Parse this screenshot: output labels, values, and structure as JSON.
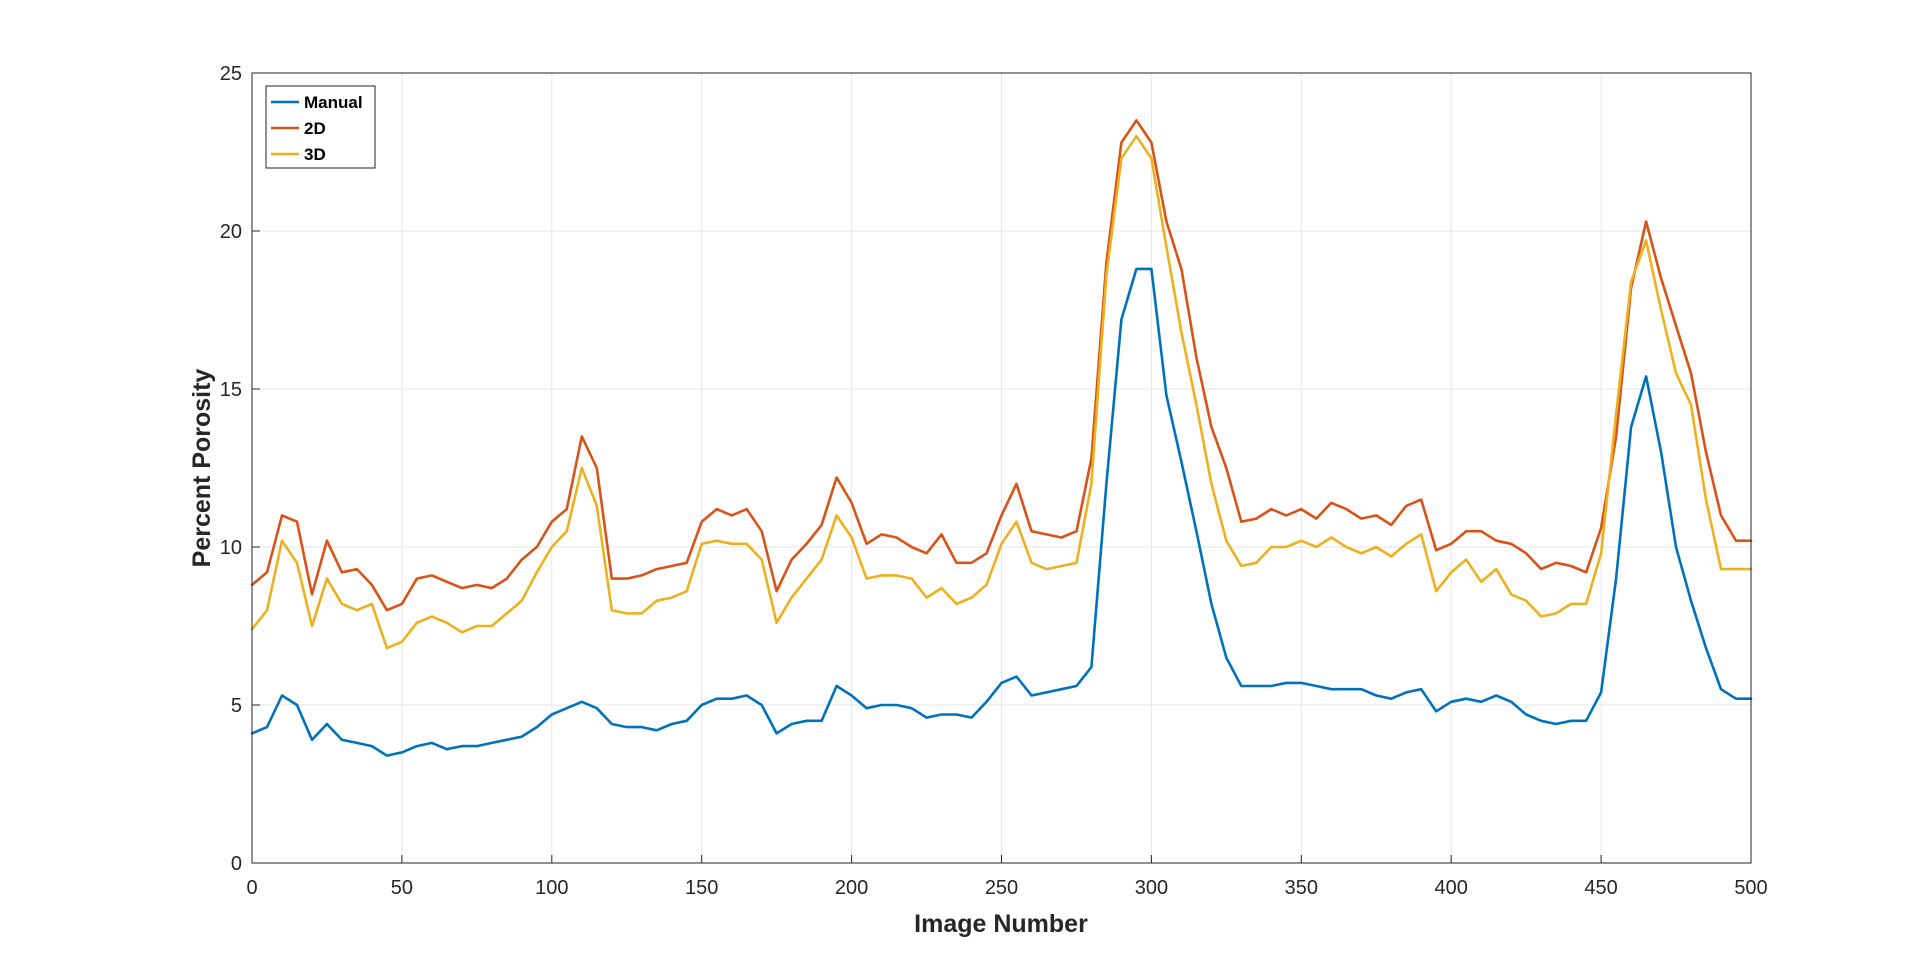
{
  "chart_data": {
    "type": "line",
    "title": "",
    "xlabel": "Image Number",
    "ylabel": "Percent Porosity",
    "xlim": [
      0,
      500
    ],
    "ylim": [
      0,
      25
    ],
    "xticks": [
      0,
      50,
      100,
      150,
      200,
      250,
      300,
      350,
      400,
      450,
      500
    ],
    "yticks": [
      0,
      5,
      10,
      15,
      20,
      25
    ],
    "grid": true,
    "legend_position": "top-left",
    "x": [
      0,
      5,
      10,
      15,
      20,
      25,
      30,
      35,
      40,
      45,
      50,
      55,
      60,
      65,
      70,
      75,
      80,
      85,
      90,
      95,
      100,
      105,
      110,
      115,
      120,
      125,
      130,
      135,
      140,
      145,
      150,
      155,
      160,
      165,
      170,
      175,
      180,
      185,
      190,
      195,
      200,
      205,
      210,
      215,
      220,
      225,
      230,
      235,
      240,
      245,
      250,
      255,
      260,
      265,
      270,
      275,
      280,
      285,
      290,
      295,
      300,
      305,
      310,
      315,
      320,
      325,
      330,
      335,
      340,
      345,
      350,
      355,
      360,
      365,
      370,
      375,
      380,
      385,
      390,
      395,
      400,
      405,
      410,
      415,
      420,
      425,
      430,
      435,
      440,
      445,
      450,
      455,
      460,
      465,
      470,
      475,
      480,
      485,
      490,
      495,
      500
    ],
    "series": [
      {
        "name": "Manual",
        "color": "#0072BD",
        "values": [
          4.1,
          4.3,
          5.3,
          5.0,
          3.9,
          4.4,
          3.9,
          3.8,
          3.7,
          3.4,
          3.5,
          3.7,
          3.8,
          3.6,
          3.7,
          3.7,
          3.8,
          3.9,
          4.0,
          4.3,
          4.7,
          4.9,
          5.1,
          4.9,
          4.4,
          4.3,
          4.3,
          4.2,
          4.4,
          4.5,
          5.0,
          5.2,
          5.2,
          5.3,
          5.0,
          4.1,
          4.4,
          4.5,
          4.5,
          5.6,
          5.3,
          4.9,
          5.0,
          5.0,
          4.9,
          4.6,
          4.7,
          4.7,
          4.6,
          5.1,
          5.7,
          5.9,
          5.3,
          5.4,
          5.5,
          5.6,
          6.2,
          12.0,
          17.2,
          18.8,
          18.8,
          14.8,
          12.7,
          10.5,
          8.2,
          6.5,
          5.6,
          5.6,
          5.6,
          5.7,
          5.7,
          5.6,
          5.5,
          5.5,
          5.5,
          5.3,
          5.2,
          5.4,
          5.5,
          4.8,
          5.1,
          5.2,
          5.1,
          5.3,
          5.1,
          4.7,
          4.5,
          4.4,
          4.5,
          4.5,
          5.4,
          9.0,
          13.8,
          15.4,
          13.0,
          10.0,
          8.3,
          6.8,
          5.5,
          5.2,
          5.2
        ]
      },
      {
        "name": "2D",
        "color": "#D95319",
        "values": [
          8.8,
          9.2,
          11.0,
          10.8,
          8.5,
          10.2,
          9.2,
          9.3,
          8.8,
          8.0,
          8.2,
          9.0,
          9.1,
          8.9,
          8.7,
          8.8,
          8.7,
          9.0,
          9.6,
          10.0,
          10.8,
          11.2,
          13.5,
          12.5,
          9.0,
          9.0,
          9.1,
          9.3,
          9.4,
          9.5,
          10.8,
          11.2,
          11.0,
          11.2,
          10.5,
          8.6,
          9.6,
          10.1,
          10.7,
          12.2,
          11.4,
          10.1,
          10.4,
          10.3,
          10.0,
          9.8,
          10.4,
          9.5,
          9.5,
          9.8,
          11.0,
          12.0,
          10.5,
          10.4,
          10.3,
          10.5,
          12.8,
          19.0,
          22.8,
          23.5,
          22.8,
          20.3,
          18.8,
          16.0,
          13.8,
          12.5,
          10.8,
          10.9,
          11.2,
          11.0,
          11.2,
          10.9,
          11.4,
          11.2,
          10.9,
          11.0,
          10.7,
          11.3,
          11.5,
          9.9,
          10.1,
          10.5,
          10.5,
          10.2,
          10.1,
          9.8,
          9.3,
          9.5,
          9.4,
          9.2,
          10.6,
          13.5,
          18.2,
          20.3,
          18.5,
          17.0,
          15.5,
          13.0,
          11.0,
          10.2,
          10.2
        ]
      },
      {
        "name": "3D",
        "color": "#EDB120",
        "values": [
          7.4,
          8.0,
          10.2,
          9.5,
          7.5,
          9.0,
          8.2,
          8.0,
          8.2,
          6.8,
          7.0,
          7.6,
          7.8,
          7.6,
          7.3,
          7.5,
          7.5,
          7.9,
          8.3,
          9.2,
          10.0,
          10.5,
          12.5,
          11.3,
          8.0,
          7.9,
          7.9,
          8.3,
          8.4,
          8.6,
          10.1,
          10.2,
          10.1,
          10.1,
          9.6,
          7.6,
          8.4,
          9.0,
          9.6,
          11.0,
          10.3,
          9.0,
          9.1,
          9.1,
          9.0,
          8.4,
          8.7,
          8.2,
          8.4,
          8.8,
          10.1,
          10.8,
          9.5,
          9.3,
          9.4,
          9.5,
          12.0,
          18.6,
          22.3,
          23.0,
          22.3,
          19.5,
          16.8,
          14.5,
          12.0,
          10.2,
          9.4,
          9.5,
          10.0,
          10.0,
          10.2,
          10.0,
          10.3,
          10.0,
          9.8,
          10.0,
          9.7,
          10.1,
          10.4,
          8.6,
          9.2,
          9.6,
          8.9,
          9.3,
          8.5,
          8.3,
          7.8,
          7.9,
          8.2,
          8.2,
          9.8,
          14.2,
          18.4,
          19.7,
          17.5,
          15.5,
          14.5,
          11.5,
          9.3,
          9.3,
          9.3
        ]
      }
    ]
  }
}
